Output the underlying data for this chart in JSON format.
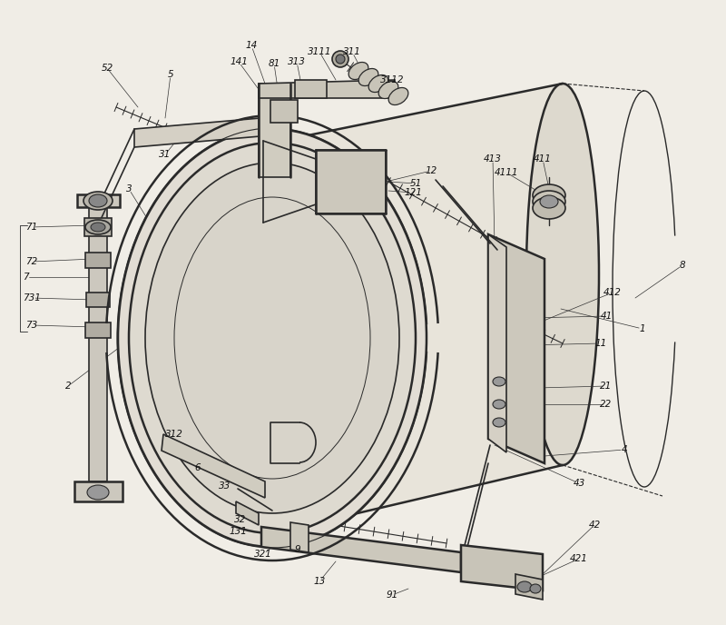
{
  "bg_color": "#f0ede6",
  "line_color": "#2a2a2a",
  "lw_main": 1.2,
  "lw_thin": 0.6,
  "lw_thick": 1.8,
  "fs": 7.5,
  "labels": [
    [
      "52",
      118,
      75
    ],
    [
      "5",
      188,
      82
    ],
    [
      "141",
      263,
      68
    ],
    [
      "14",
      277,
      50
    ],
    [
      "81",
      302,
      70
    ],
    [
      "313",
      327,
      68
    ],
    [
      "3111",
      352,
      57
    ],
    [
      "311",
      388,
      57
    ],
    [
      "3112",
      432,
      88
    ],
    [
      "12",
      475,
      188
    ],
    [
      "413",
      543,
      175
    ],
    [
      "4111",
      558,
      190
    ],
    [
      "411",
      598,
      175
    ],
    [
      "121",
      455,
      212
    ],
    [
      "51",
      458,
      202
    ],
    [
      "31",
      182,
      170
    ],
    [
      "3",
      142,
      208
    ],
    [
      "71",
      35,
      250
    ],
    [
      "72",
      35,
      288
    ],
    [
      "7",
      28,
      305
    ],
    [
      "731",
      35,
      328
    ],
    [
      "73",
      35,
      358
    ],
    [
      "2",
      75,
      425
    ],
    [
      "312",
      192,
      478
    ],
    [
      "6",
      218,
      515
    ],
    [
      "33",
      248,
      535
    ],
    [
      "32",
      265,
      572
    ],
    [
      "131",
      262,
      585
    ],
    [
      "321",
      290,
      610
    ],
    [
      "9",
      328,
      605
    ],
    [
      "13",
      352,
      640
    ],
    [
      "91",
      432,
      655
    ],
    [
      "421",
      638,
      615
    ],
    [
      "42",
      655,
      578
    ],
    [
      "43",
      638,
      532
    ],
    [
      "4",
      688,
      495
    ],
    [
      "22",
      668,
      445
    ],
    [
      "21",
      668,
      425
    ],
    [
      "11",
      662,
      378
    ],
    [
      "41",
      668,
      348
    ],
    [
      "412",
      675,
      322
    ],
    [
      "1",
      708,
      362
    ],
    [
      "8",
      752,
      292
    ]
  ]
}
